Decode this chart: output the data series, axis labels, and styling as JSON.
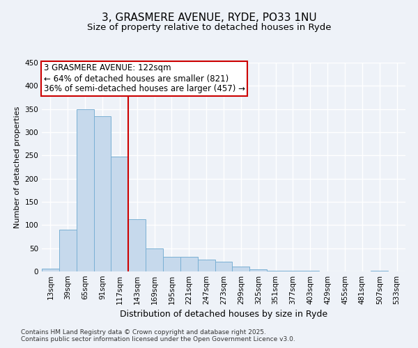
{
  "title": "3, GRASMERE AVENUE, RYDE, PO33 1NU",
  "subtitle": "Size of property relative to detached houses in Ryde",
  "xlabel": "Distribution of detached houses by size in Ryde",
  "ylabel": "Number of detached properties",
  "categories": [
    "13sqm",
    "39sqm",
    "65sqm",
    "91sqm",
    "117sqm",
    "143sqm",
    "169sqm",
    "195sqm",
    "221sqm",
    "247sqm",
    "273sqm",
    "299sqm",
    "325sqm",
    "351sqm",
    "377sqm",
    "403sqm",
    "429sqm",
    "455sqm",
    "481sqm",
    "507sqm",
    "533sqm"
  ],
  "values": [
    6,
    90,
    349,
    335,
    248,
    112,
    50,
    32,
    32,
    25,
    21,
    10,
    4,
    2,
    1,
    1,
    0,
    0,
    0,
    1,
    0
  ],
  "bar_color": "#c6d9ec",
  "bar_edge_color": "#7ab0d4",
  "vline_x": 4.5,
  "vline_color": "#cc0000",
  "annotation_title": "3 GRASMERE AVENUE: 122sqm",
  "annotation_line2": "← 64% of detached houses are smaller (821)",
  "annotation_line3": "36% of semi-detached houses are larger (457) →",
  "annotation_box_facecolor": "#ffffff",
  "annotation_box_edgecolor": "#cc0000",
  "footnote1": "Contains HM Land Registry data © Crown copyright and database right 2025.",
  "footnote2": "Contains public sector information licensed under the Open Government Licence v3.0.",
  "ylim": [
    0,
    450
  ],
  "yticks": [
    0,
    50,
    100,
    150,
    200,
    250,
    300,
    350,
    400,
    450
  ],
  "bg_color": "#eef2f8",
  "grid_color": "#ffffff",
  "title_fontsize": 11,
  "subtitle_fontsize": 9.5,
  "xlabel_fontsize": 9,
  "ylabel_fontsize": 8,
  "tick_fontsize": 7.5,
  "footnote_fontsize": 6.5,
  "annotation_fontsize": 8.5
}
